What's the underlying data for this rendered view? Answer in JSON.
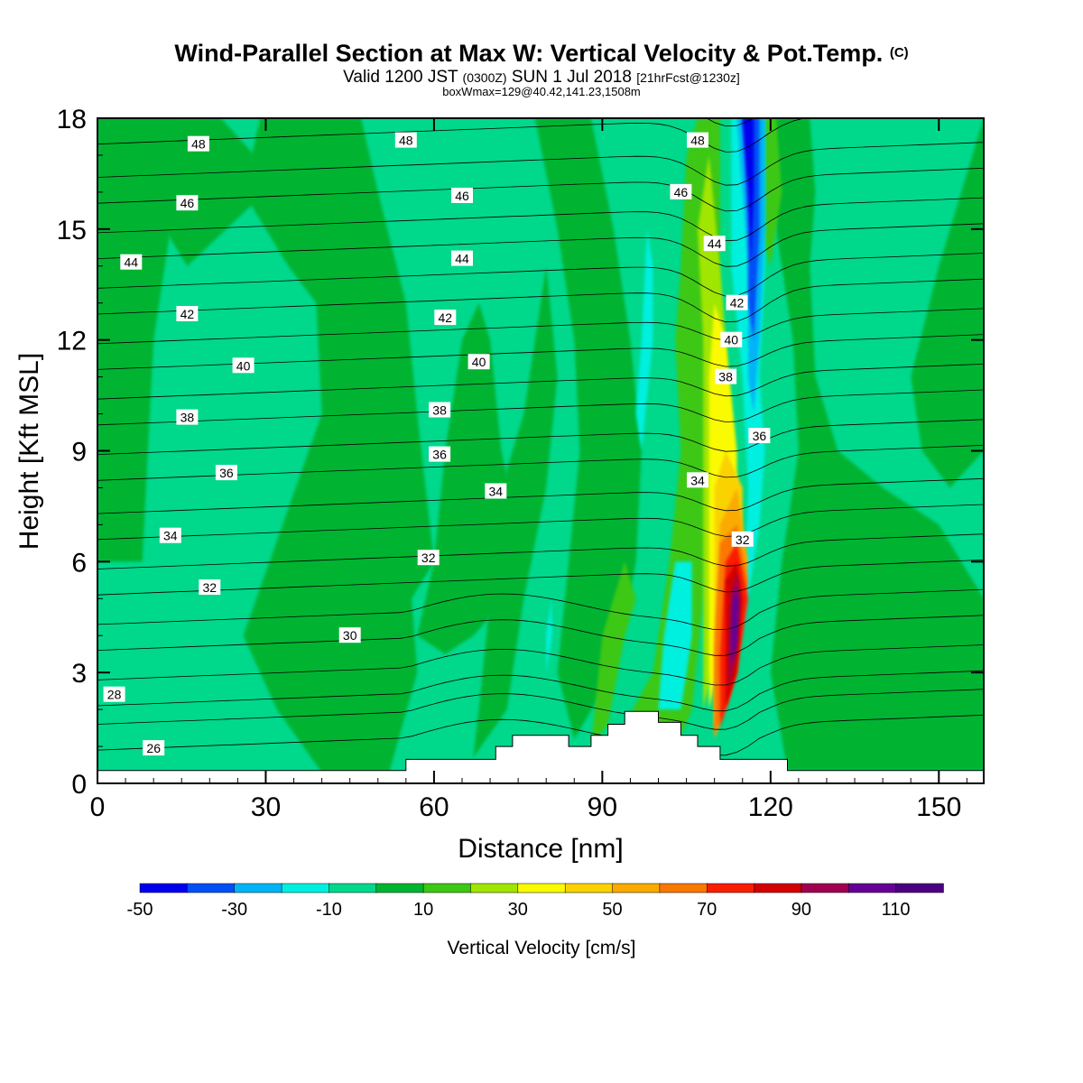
{
  "header": {
    "title_main": "Wind-Parallel Section at Max W: Vertical Velocity & Pot.Temp.",
    "title_copyright": "(C)",
    "valid_prefix": "Valid 1200 JST",
    "valid_utc": "(0300Z)",
    "valid_date": "SUN 1 Jul 2018",
    "forecast_info": "[21hrFcst@1230z]",
    "box_info": "boxWmax=129@40.42,141.23,1508m"
  },
  "chart_data": {
    "type": "heatmap",
    "title": "Wind-Parallel Section at Max W: Vertical Velocity & Pot.Temp.",
    "xlabel": "Distance [nm]",
    "ylabel": "Height [Kft MSL]",
    "xlim": [
      0,
      158
    ],
    "ylim": [
      0,
      18
    ],
    "xticks": [
      0,
      30,
      60,
      90,
      120,
      150
    ],
    "yticks": [
      0,
      3,
      6,
      9,
      12,
      15,
      18
    ],
    "colorbar": {
      "title": "Vertical Velocity [cm/s]",
      "tick_labels": [
        "-50",
        "-30",
        "-10",
        "10",
        "30",
        "50",
        "70",
        "90",
        "110"
      ],
      "levels": [
        -50,
        -40,
        -30,
        -20,
        -10,
        0,
        10,
        20,
        30,
        40,
        50,
        60,
        70,
        80,
        90,
        100,
        110,
        120
      ],
      "colors": [
        "#0000ee",
        "#0050f5",
        "#00b4f5",
        "#00f0e0",
        "#00d88c",
        "#00b432",
        "#3cc814",
        "#a0e600",
        "#fafa00",
        "#fad200",
        "#faaa00",
        "#fa7800",
        "#fa1e00",
        "#d20000",
        "#a00050",
        "#640096",
        "#4b0082"
      ]
    },
    "terrain_profile": [
      [
        0,
        0.35
      ],
      [
        55,
        0.35
      ],
      [
        55,
        0.65
      ],
      [
        71,
        0.65
      ],
      [
        71,
        1.0
      ],
      [
        74,
        1.0
      ],
      [
        74,
        1.3
      ],
      [
        84,
        1.3
      ],
      [
        84,
        1.0
      ],
      [
        88,
        1.0
      ],
      [
        88,
        1.3
      ],
      [
        91,
        1.3
      ],
      [
        91,
        1.6
      ],
      [
        94,
        1.6
      ],
      [
        94,
        1.95
      ],
      [
        100,
        1.95
      ],
      [
        100,
        1.65
      ],
      [
        104,
        1.65
      ],
      [
        104,
        1.3
      ],
      [
        107,
        1.3
      ],
      [
        107,
        1.0
      ],
      [
        111,
        1.0
      ],
      [
        111,
        0.65
      ],
      [
        123,
        0.65
      ],
      [
        123,
        0.35
      ],
      [
        158,
        0.35
      ]
    ],
    "vertical_velocity_features": [
      {
        "name": "updraft core",
        "x_center": 113,
        "y_center": 4.8,
        "peak_cm_s": 110
      },
      {
        "name": "downdraft upper",
        "x_center": 116,
        "y_center": 15,
        "peak_cm_s": -40
      }
    ],
    "potential_temperature_contours": {
      "levels": [
        26,
        28,
        30,
        32,
        34,
        36,
        38,
        40,
        42,
        44,
        46,
        48
      ],
      "labels": [
        {
          "text": "48",
          "x": 18,
          "y": 17.3
        },
        {
          "text": "48",
          "x": 55,
          "y": 17.4
        },
        {
          "text": "48",
          "x": 107,
          "y": 17.4
        },
        {
          "text": "46",
          "x": 16,
          "y": 15.7
        },
        {
          "text": "46",
          "x": 65,
          "y": 15.9
        },
        {
          "text": "46",
          "x": 104,
          "y": 16.0
        },
        {
          "text": "44",
          "x": 6,
          "y": 14.1
        },
        {
          "text": "44",
          "x": 65,
          "y": 14.2
        },
        {
          "text": "44",
          "x": 110,
          "y": 14.6
        },
        {
          "text": "42",
          "x": 16,
          "y": 12.7
        },
        {
          "text": "42",
          "x": 62,
          "y": 12.6
        },
        {
          "text": "42",
          "x": 114,
          "y": 13.0
        },
        {
          "text": "40",
          "x": 26,
          "y": 11.3
        },
        {
          "text": "40",
          "x": 68,
          "y": 11.4
        },
        {
          "text": "40",
          "x": 113,
          "y": 12.0
        },
        {
          "text": "38",
          "x": 16,
          "y": 9.9
        },
        {
          "text": "38",
          "x": 61,
          "y": 10.1
        },
        {
          "text": "38",
          "x": 112,
          "y": 11.0
        },
        {
          "text": "36",
          "x": 23,
          "y": 8.4
        },
        {
          "text": "36",
          "x": 61,
          "y": 8.9
        },
        {
          "text": "36",
          "x": 118,
          "y": 9.4
        },
        {
          "text": "34",
          "x": 13,
          "y": 6.7
        },
        {
          "text": "34",
          "x": 71,
          "y": 7.9
        },
        {
          "text": "34",
          "x": 107,
          "y": 8.2
        },
        {
          "text": "32",
          "x": 20,
          "y": 5.3
        },
        {
          "text": "32",
          "x": 59,
          "y": 6.1
        },
        {
          "text": "32",
          "x": 115,
          "y": 6.6
        },
        {
          "text": "30",
          "x": 45,
          "y": 4.0
        },
        {
          "text": "28",
          "x": 3,
          "y": 2.4
        },
        {
          "text": "26",
          "x": 10,
          "y": 0.95
        }
      ]
    }
  }
}
